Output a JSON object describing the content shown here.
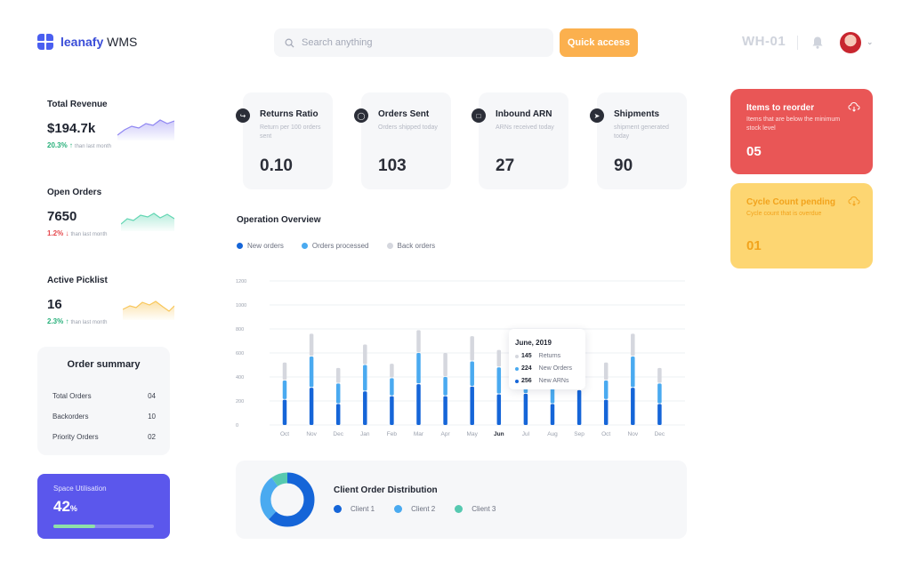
{
  "brand": {
    "name_bold": "leanafy",
    "name_light": " WMS",
    "accent": "#4a5ff0"
  },
  "header": {
    "search_placeholder": "Search anything",
    "quick_access_label": "Quick access",
    "warehouse": "WH-01"
  },
  "left_stats": [
    {
      "title": "Total Revenue",
      "value": "$194.7k",
      "change": "20.3%",
      "direction": "up",
      "note": "than last month",
      "color": "#8f86f2"
    },
    {
      "title": "Open Orders",
      "value": "7650",
      "change": "1.2%",
      "direction": "down",
      "note": "than last month",
      "color": "#63d6b3"
    },
    {
      "title": "Active Picklist",
      "value": "16",
      "change": "2.3%",
      "direction": "up",
      "note": "than last month",
      "color": "#f8c65a"
    }
  ],
  "order_summary": {
    "title": "Order summary",
    "rows": [
      {
        "label": "Total Orders",
        "value": "04"
      },
      {
        "label": "Backorders",
        "value": "10"
      },
      {
        "label": "Priority Orders",
        "value": "02"
      }
    ]
  },
  "space": {
    "label": "Space Utilisation",
    "value": "42",
    "unit": "%",
    "level": 0.42
  },
  "kpis": [
    {
      "icon": "return-arrow-icon",
      "title": "Returns Ratio",
      "desc": "Return per 100 orders sent",
      "value": "0.10"
    },
    {
      "icon": "box-icon",
      "title": "Orders Sent",
      "desc": "Orders shipped today",
      "value": "103"
    },
    {
      "icon": "document-icon",
      "title": "Inbound ARN",
      "desc": "ARNs received today",
      "value": "27"
    },
    {
      "icon": "paper-plane-icon",
      "title": "Shipments",
      "desc": "shipment generated today",
      "value": "90"
    }
  ],
  "overview": {
    "title": "Operation Overview",
    "legend": [
      {
        "label": "New orders",
        "color": "#1565d8"
      },
      {
        "label": "Orders processed",
        "color": "#4aaaf0"
      },
      {
        "label": "Back orders",
        "color": "#d5d7de"
      }
    ],
    "tooltip": {
      "title": "June, 2019",
      "rows": [
        {
          "value": "145",
          "label": "Returns",
          "color": "#d5d7de"
        },
        {
          "value": "224",
          "label": "New Orders",
          "color": "#4aaaf0"
        },
        {
          "value": "256",
          "label": "New ARNs",
          "color": "#1565d8"
        }
      ]
    }
  },
  "chart_data": {
    "type": "bar",
    "stacked": true,
    "categories": [
      "Oct",
      "Nov",
      "Dec",
      "Jan",
      "Feb",
      "Mar",
      "Apr",
      "May",
      "Jun",
      "Jul",
      "Aug",
      "Sep",
      "Oct",
      "Nov",
      "Dec"
    ],
    "highlight_category": "Jun",
    "series": [
      {
        "name": "New orders",
        "values": [
          210,
          310,
          175,
          280,
          240,
          340,
          240,
          320,
          256,
          260,
          175,
          290,
          210,
          310,
          175
        ]
      },
      {
        "name": "Orders processed",
        "values": [
          160,
          260,
          170,
          220,
          150,
          260,
          160,
          210,
          224,
          180,
          160,
          210,
          160,
          260,
          170
        ]
      },
      {
        "name": "Back orders",
        "values": [
          150,
          190,
          130,
          170,
          120,
          190,
          200,
          210,
          145,
          190,
          120,
          150,
          150,
          190,
          130
        ]
      }
    ],
    "yticks": [
      0,
      200,
      400,
      600,
      800,
      1000,
      1200
    ],
    "ylim": [
      0,
      1200
    ],
    "grid": true,
    "legend_position": "top-left"
  },
  "distribution": {
    "title": "Client Order Distribution",
    "legend": [
      {
        "label": "Client 1",
        "color": "#1565d8",
        "share": 0.62
      },
      {
        "label": "Client 2",
        "color": "#4aaaf0",
        "share": 0.28
      },
      {
        "label": "Client 3",
        "color": "#56c9b0",
        "share": 0.1
      }
    ]
  },
  "alerts": [
    {
      "title": "Items to reorder",
      "desc": "Items that are below the minimum stock level",
      "value": "05",
      "bg": "#e95656",
      "fg": "#ffffff",
      "desc_color": "#fde0e0"
    },
    {
      "title": "Cycle Count pending",
      "desc": "Cycle count that is overdue",
      "value": "01",
      "bg": "#fdd672",
      "fg": "#f2a31c",
      "desc_color": "#f2a31c"
    }
  ]
}
